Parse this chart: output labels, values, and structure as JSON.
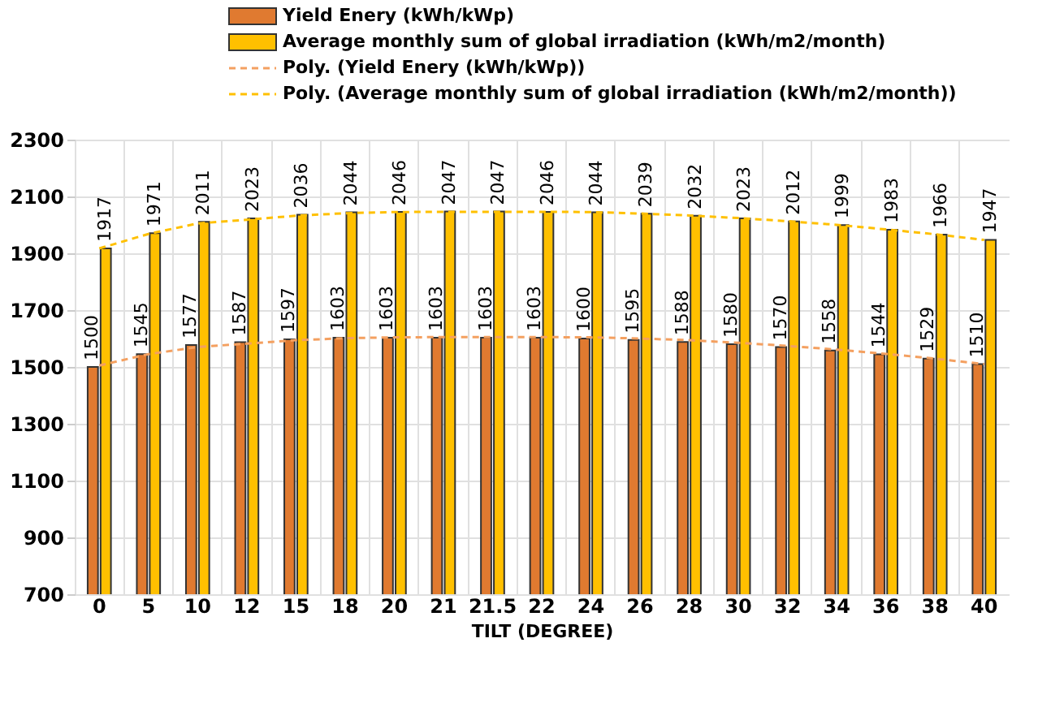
{
  "chart_data": {
    "type": "bar",
    "xlabel": "TILT (DEGREE)",
    "categories": [
      "0",
      "5",
      "10",
      "12",
      "15",
      "18",
      "20",
      "21",
      "21.5",
      "22",
      "24",
      "26",
      "28",
      "30",
      "32",
      "34",
      "36",
      "38",
      "40"
    ],
    "series": [
      {
        "name": "Yield Enery (kWh/kWp)",
        "color": "#e07a30",
        "values": [
          1500,
          1545,
          1577,
          1587,
          1597,
          1603,
          1603,
          1603,
          1603,
          1603,
          1600,
          1595,
          1588,
          1580,
          1570,
          1558,
          1544,
          1529,
          1510
        ],
        "value_labels": [
          "1500",
          "1545",
          "1577",
          "1587",
          "1597",
          "1603",
          "1603",
          "1603",
          "1603",
          "1603",
          "1600",
          "1595",
          "1588",
          "1580",
          "1570",
          "1558",
          "1544",
          "1529",
          "1510"
        ]
      },
      {
        "name": "Average monthly sum of global irradiation (kWh/m2/month)",
        "color": "#ffc000",
        "values": [
          1917,
          1971,
          2011,
          2023,
          2036,
          2044,
          2046,
          2047,
          2047,
          2046,
          2044,
          2039,
          2032,
          2023,
          2012,
          1999,
          1983,
          1966,
          1947
        ],
        "value_labels": [
          "1917",
          "1971",
          "2011",
          "2023",
          "2036",
          "2044",
          "2046",
          "2047",
          "2047",
          "2046",
          "2044",
          "2039",
          "2032",
          "2023",
          "2012",
          "1999",
          "1983",
          "1966",
          "1947"
        ]
      },
      {
        "name": "Poly. (Yield Enery (kWh/kWp))",
        "type": "line",
        "line_style": "dashed",
        "color": "#f4a060",
        "values": [
          1505,
          1545,
          1570,
          1582,
          1594,
          1601,
          1604,
          1605,
          1605,
          1605,
          1604,
          1600,
          1594,
          1585,
          1574,
          1561,
          1546,
          1529,
          1510
        ]
      },
      {
        "name": "Poly. (Average monthly sum of global irradiation (kWh/m2/month))",
        "type": "line",
        "line_style": "dashed",
        "color": "#ffc000",
        "values": [
          1917,
          1968,
          2005,
          2018,
          2032,
          2041,
          2045,
          2046,
          2046,
          2046,
          2045,
          2040,
          2033,
          2024,
          2013,
          2000,
          1984,
          1967,
          1947
        ]
      }
    ],
    "ylim": [
      700,
      2300
    ],
    "yticks": [
      700,
      900,
      1100,
      1300,
      1500,
      1700,
      1900,
      2100,
      2300
    ],
    "grid": true,
    "legend": "top"
  }
}
